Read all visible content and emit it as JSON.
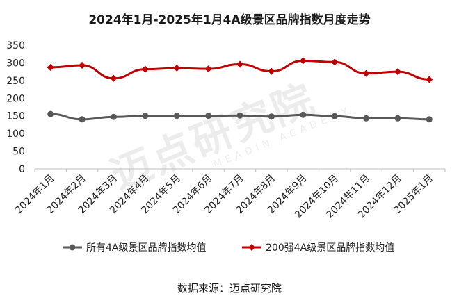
{
  "chart_data": {
    "type": "line",
    "title": "2024年1月-2025年1月4A级景区品牌指数月度走势",
    "categories": [
      "2024年1月",
      "2024年2月",
      "2024年3月",
      "2024年4月",
      "2024年5月",
      "2024年6月",
      "2024年7月",
      "2024年8月",
      "2024年9月",
      "2024年10月",
      "2024年11月",
      "2024年12月",
      "2025年1月"
    ],
    "series": [
      {
        "name": "所有4A级景区品牌指数均值",
        "color": "#595959",
        "marker": "circle",
        "values": [
          155,
          140,
          147,
          150,
          150,
          150,
          151,
          148,
          153,
          149,
          143,
          143,
          140
        ]
      },
      {
        "name": "200强4A级景区品牌指数均值",
        "color": "#c00000",
        "marker": "diamond",
        "values": [
          287,
          293,
          256,
          282,
          285,
          283,
          296,
          276,
          306,
          302,
          270,
          275,
          253
        ]
      }
    ],
    "ylim": [
      0,
      350
    ],
    "yticks": [
      "0",
      "50",
      "100",
      "150",
      "200",
      "250",
      "300",
      "350"
    ],
    "grid": false,
    "legend_position": "bottom"
  },
  "source": "数据来源：迈点研究院",
  "watermark": {
    "main": "迈点研究院",
    "sub": "MEADIN ACADEMY"
  }
}
